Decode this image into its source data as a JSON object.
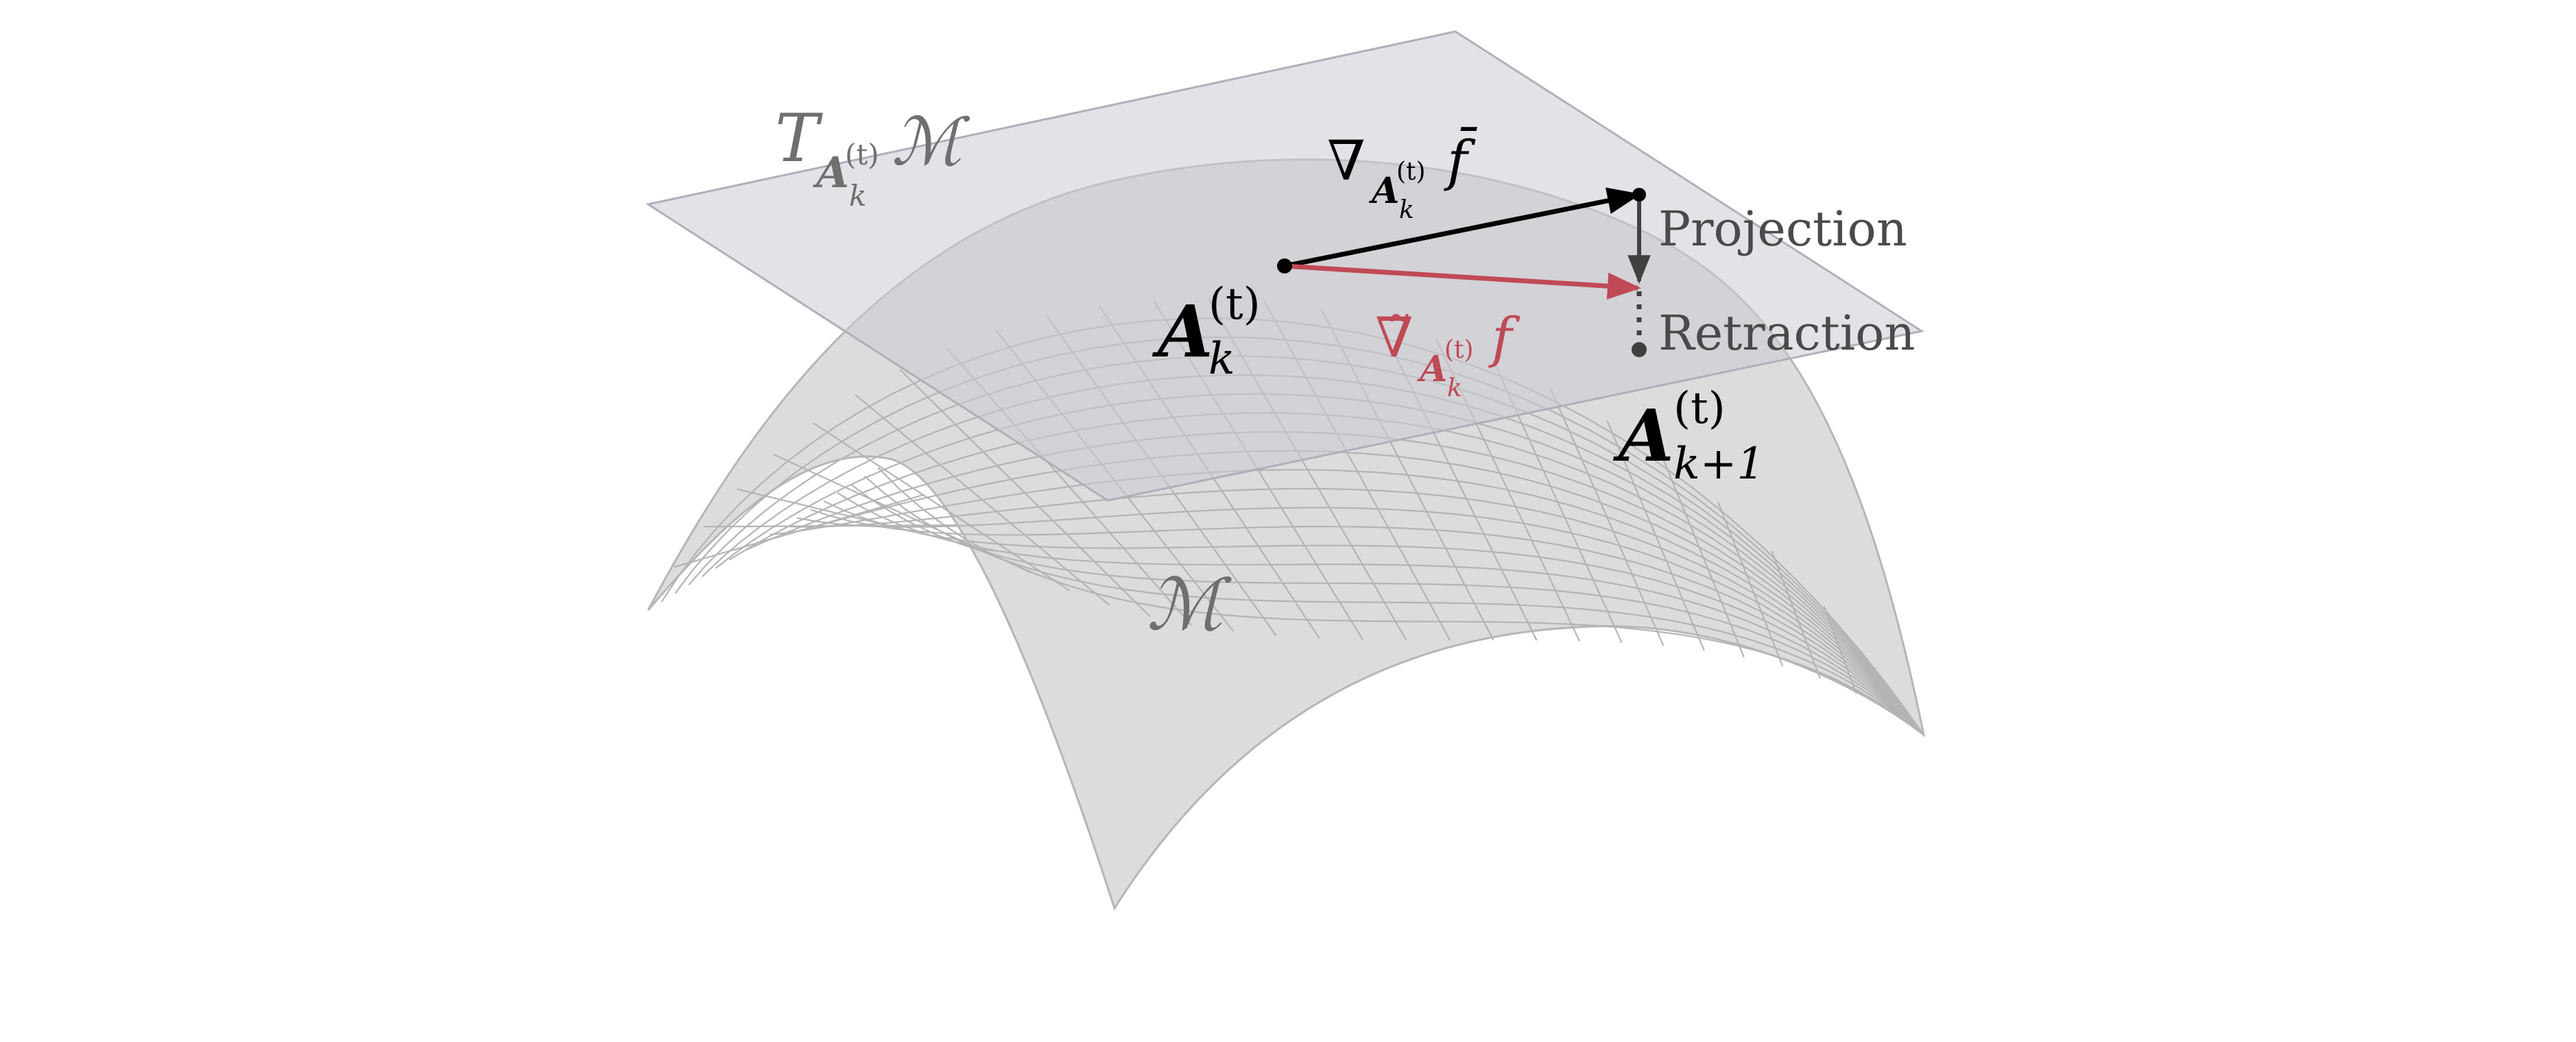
{
  "diagram": {
    "tangent_space": {
      "symbol": "T",
      "sub_matrix": "A",
      "sub_sub": "k",
      "sub_sup": "(t)",
      "manifold": "ℳ"
    },
    "manifold_label": "ℳ",
    "current_point": {
      "matrix": "A",
      "sub": "k",
      "sup": "(t)"
    },
    "next_point": {
      "matrix": "A",
      "sub": "k+1",
      "sup": "(t)"
    },
    "euclidean_gradient": {
      "nabla": "∇",
      "sub_matrix": "A",
      "sub_sub": "k",
      "sub_sup": "(t)",
      "func": "f̄"
    },
    "riemannian_gradient": {
      "nabla": "∇̃",
      "sub_matrix": "A",
      "sub_sub": "k",
      "sub_sup": "(t)",
      "func": "f"
    },
    "projection_label": "Projection",
    "retraction_label": "Retraction"
  },
  "colors": {
    "surface_fill": "#dcdcdc",
    "surface_grid": "#b4b4b4",
    "plane_fill": "#cbcad4",
    "plane_edge": "#b0afba",
    "euclid_arrow": "#000000",
    "riemann_arrow": "#bf4a55",
    "label_grey": "#6f6f6f",
    "text_dark": "#4a4a4a"
  }
}
